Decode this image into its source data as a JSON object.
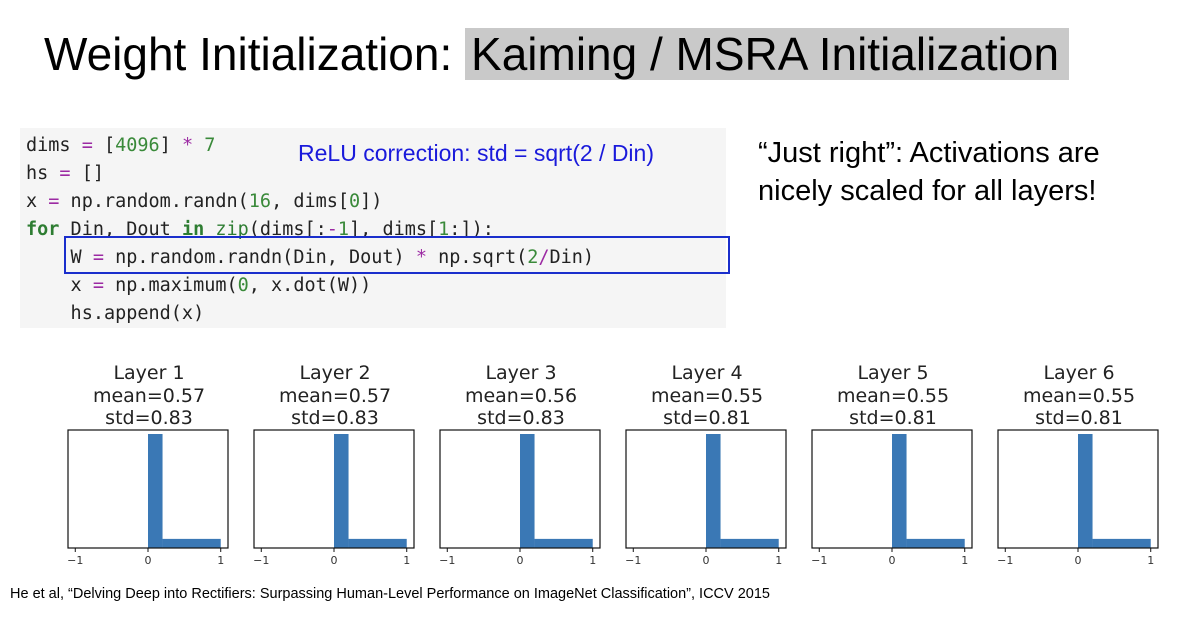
{
  "title": {
    "main": "Weight Initialization: ",
    "highlight": "Kaiming / MSRA Initialization"
  },
  "code": {
    "lines": [
      "dims = [4096] * 7",
      "hs = []",
      "x = np.random.randn(16, dims[0])",
      "for Din, Dout in zip(dims[:-1], dims[1:]):",
      "    W = np.random.randn(Din, Dout) * np.sqrt(2/Din)",
      "    x = np.maximum(0, x.dot(W))",
      "    hs.append(x)"
    ],
    "annotation": "ReLU correction: std = sqrt(2 / Din)"
  },
  "note": "“Just right”: Activations are nicely scaled for all layers!",
  "colors": {
    "bar": "#3a78b5",
    "highlight_box": "#1a2ecc",
    "annotation": "#1a1adb"
  },
  "chart_data": [
    {
      "type": "bar",
      "title": "Layer 1",
      "mean": "mean=0.57",
      "std": "std=0.83",
      "x": [
        -1,
        0,
        1
      ],
      "bins": [
        [
          0,
          0.2,
          1.0
        ],
        [
          0.2,
          1.0,
          0.08
        ]
      ],
      "xlim": [
        -1.1,
        1.1
      ]
    },
    {
      "type": "bar",
      "title": "Layer 2",
      "mean": "mean=0.57",
      "std": "std=0.83",
      "x": [
        -1,
        0,
        1
      ],
      "bins": [
        [
          0,
          0.2,
          1.0
        ],
        [
          0.2,
          1.0,
          0.08
        ]
      ],
      "xlim": [
        -1.1,
        1.1
      ]
    },
    {
      "type": "bar",
      "title": "Layer 3",
      "mean": "mean=0.56",
      "std": "std=0.83",
      "x": [
        -1,
        0,
        1
      ],
      "bins": [
        [
          0,
          0.2,
          1.0
        ],
        [
          0.2,
          1.0,
          0.08
        ]
      ],
      "xlim": [
        -1.1,
        1.1
      ]
    },
    {
      "type": "bar",
      "title": "Layer 4",
      "mean": "mean=0.55",
      "std": "std=0.81",
      "x": [
        -1,
        0,
        1
      ],
      "bins": [
        [
          0,
          0.2,
          1.0
        ],
        [
          0.2,
          1.0,
          0.08
        ]
      ],
      "xlim": [
        -1.1,
        1.1
      ]
    },
    {
      "type": "bar",
      "title": "Layer 5",
      "mean": "mean=0.55",
      "std": "std=0.81",
      "x": [
        -1,
        0,
        1
      ],
      "bins": [
        [
          0,
          0.2,
          1.0
        ],
        [
          0.2,
          1.0,
          0.08
        ]
      ],
      "xlim": [
        -1.1,
        1.1
      ]
    },
    {
      "type": "bar",
      "title": "Layer 6",
      "mean": "mean=0.55",
      "std": "std=0.81",
      "x": [
        -1,
        0,
        1
      ],
      "bins": [
        [
          0,
          0.2,
          1.0
        ],
        [
          0.2,
          1.0,
          0.08
        ]
      ],
      "xlim": [
        -1.1,
        1.1
      ]
    }
  ],
  "citation": "He et al, “Delving Deep into Rectifiers: Surpassing Human-Level Performance on ImageNet Classification”, ICCV 2015"
}
